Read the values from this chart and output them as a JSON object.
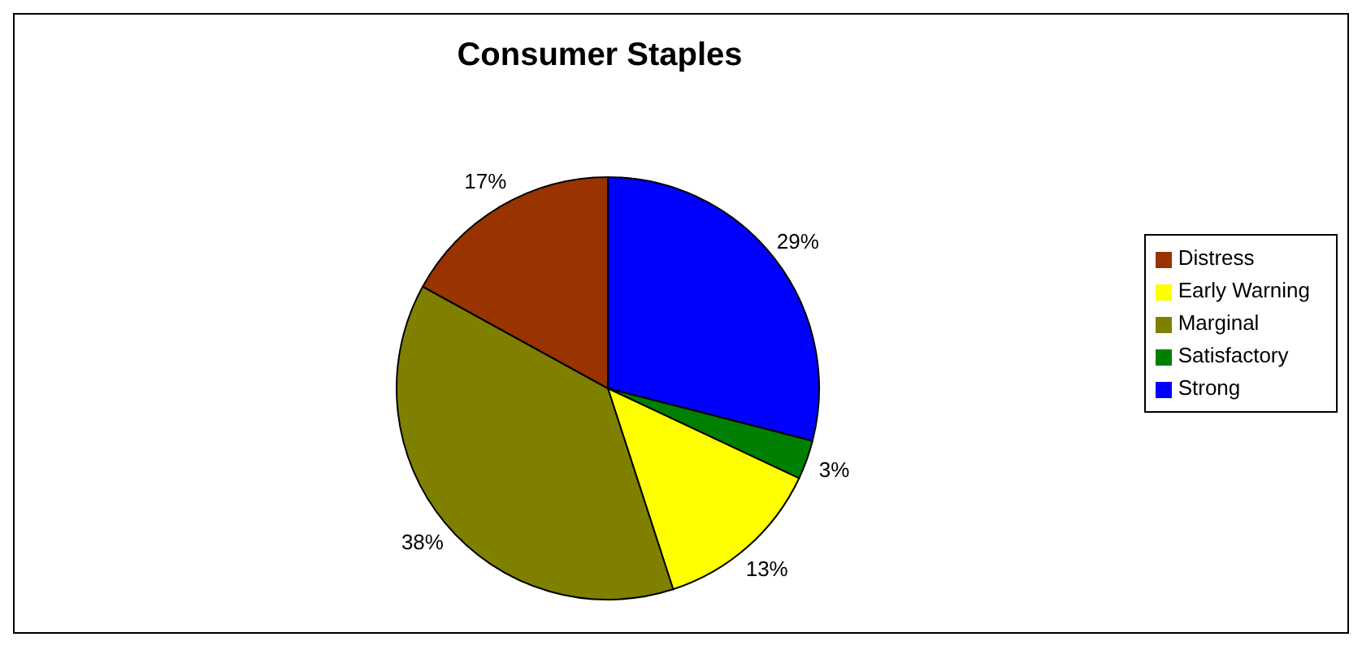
{
  "chart_data": {
    "type": "pie",
    "title": "Consumer Staples",
    "categories": [
      "Strong",
      "Satisfactory",
      "Early Warning",
      "Marginal",
      "Distress"
    ],
    "values": [
      29,
      3,
      13,
      38,
      17
    ],
    "value_labels": [
      "29%",
      "3%",
      "13%",
      "38%",
      "17%"
    ],
    "colors": [
      "#0000ff",
      "#008000",
      "#ffff00",
      "#808000",
      "#993300"
    ],
    "legend": "right"
  }
}
